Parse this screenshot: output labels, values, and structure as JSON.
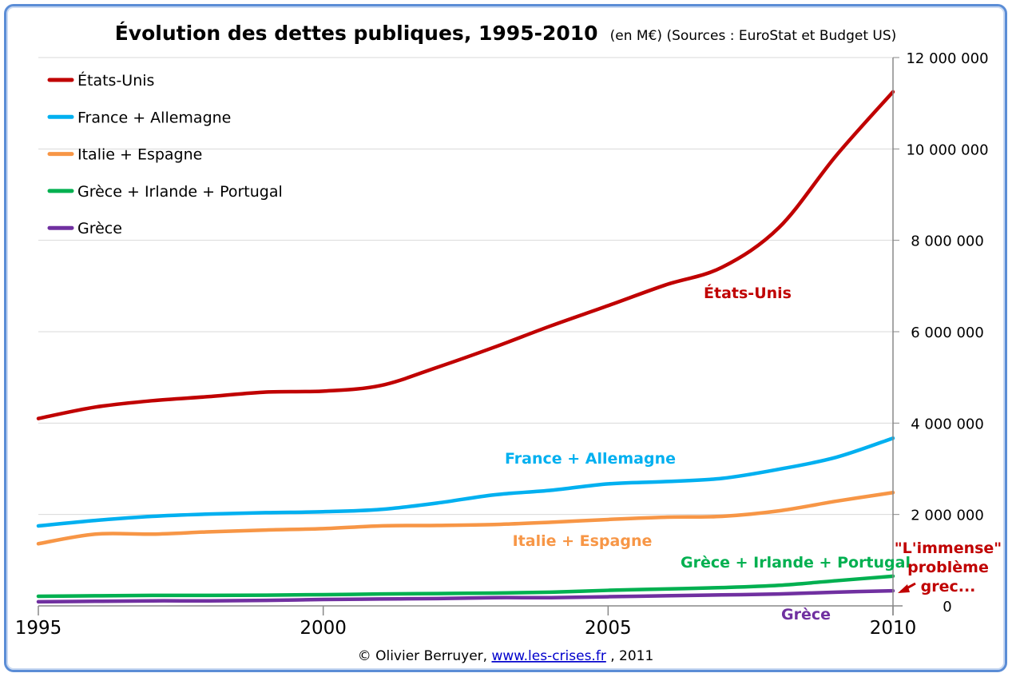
{
  "chart_data": {
    "type": "line",
    "title": "Évolution des dettes publiques, 1995-2010",
    "subtitle": "(en M€) (Sources : EuroStat et Budget US)",
    "xlabel": "",
    "ylabel": "",
    "x": [
      1995,
      1996,
      1997,
      1998,
      1999,
      2000,
      2001,
      2002,
      2003,
      2004,
      2005,
      2006,
      2007,
      2008,
      2009,
      2010
    ],
    "xlim": [
      1995,
      2010
    ],
    "x_tick_labels": [
      "1995",
      "2000",
      "2005",
      "2010"
    ],
    "x_tick_values": [
      1995,
      2000,
      2005,
      2010
    ],
    "ylim": [
      0,
      12000000
    ],
    "y_axis_side": "right",
    "y_tick_values": [
      0,
      2000000,
      4000000,
      6000000,
      8000000,
      10000000,
      12000000
    ],
    "y_tick_labels": [
      "0",
      "2 000 000",
      "4 000 000",
      "6 000 000",
      "8 000 000",
      "10 000 000",
      "12 000 000"
    ],
    "grid": true,
    "legend_position": "top-left",
    "series": [
      {
        "name": "États-Unis",
        "color": "#c00000",
        "values": [
          4100000,
          4350000,
          4490000,
          4580000,
          4680000,
          4700000,
          4820000,
          5220000,
          5660000,
          6130000,
          6570000,
          7020000,
          7410000,
          8280000,
          9850000,
          11250000
        ]
      },
      {
        "name": "France + Allemagne",
        "color": "#00b0f0",
        "values": [
          1750000,
          1870000,
          1960000,
          2010000,
          2040000,
          2060000,
          2110000,
          2250000,
          2430000,
          2530000,
          2670000,
          2720000,
          2790000,
          2990000,
          3250000,
          3670000
        ]
      },
      {
        "name": "Italie + Espagne",
        "color": "#f79646",
        "values": [
          1360000,
          1570000,
          1570000,
          1620000,
          1660000,
          1690000,
          1750000,
          1760000,
          1780000,
          1830000,
          1890000,
          1940000,
          1960000,
          2080000,
          2290000,
          2480000
        ]
      },
      {
        "name": "Grèce + Irlande + Portugal",
        "color": "#00b050",
        "values": [
          210000,
          220000,
          230000,
          230000,
          235000,
          245000,
          260000,
          270000,
          280000,
          300000,
          340000,
          370000,
          400000,
          450000,
          550000,
          650000
        ]
      },
      {
        "name": "Grèce",
        "color": "#7030a0",
        "values": [
          90000,
          100000,
          110000,
          110000,
          120000,
          140000,
          150000,
          160000,
          180000,
          180000,
          200000,
          220000,
          240000,
          260000,
          300000,
          330000
        ]
      }
    ],
    "annotations": [
      {
        "text": "États-Unis",
        "series": 0
      },
      {
        "text": "France + Allemagne",
        "series": 1
      },
      {
        "text": "Italie + Espagne",
        "series": 2
      },
      {
        "text": "Grèce + Irlande + Portugal",
        "series": 3
      },
      {
        "text": "Grèce",
        "series": 4
      }
    ],
    "callout": {
      "lines": [
        "\"L'immense\"",
        "problème",
        "grec..."
      ],
      "color": "#c00000"
    }
  },
  "credit": {
    "prefix": "© Olivier Berruyer, ",
    "link": "www.les-crises.fr",
    "suffix": ",  2011"
  }
}
